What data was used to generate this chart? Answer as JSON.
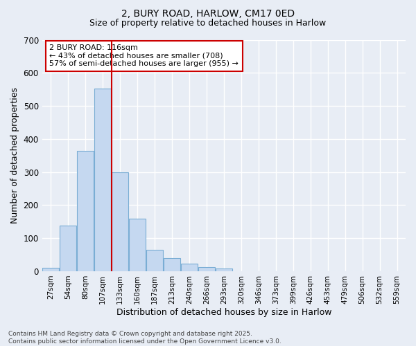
{
  "title1": "2, BURY ROAD, HARLOW, CM17 0ED",
  "title2": "Size of property relative to detached houses in Harlow",
  "xlabel": "Distribution of detached houses by size in Harlow",
  "ylabel": "Number of detached properties",
  "categories": [
    "27sqm",
    "54sqm",
    "80sqm",
    "107sqm",
    "133sqm",
    "160sqm",
    "187sqm",
    "213sqm",
    "240sqm",
    "266sqm",
    "293sqm",
    "320sqm",
    "346sqm",
    "373sqm",
    "399sqm",
    "426sqm",
    "453sqm",
    "479sqm",
    "506sqm",
    "532sqm",
    "559sqm"
  ],
  "values": [
    10,
    138,
    365,
    553,
    300,
    160,
    65,
    40,
    22,
    13,
    8,
    0,
    0,
    0,
    0,
    0,
    0,
    0,
    0,
    0,
    0
  ],
  "bar_color": "#c5d8f0",
  "bar_edge_color": "#7aadd4",
  "background_color": "#e8edf5",
  "grid_color": "#ffffff",
  "annotation_line1": "2 BURY ROAD: 116sqm",
  "annotation_line2": "← 43% of detached houses are smaller (708)",
  "annotation_line3": "57% of semi-detached houses are larger (955) →",
  "annotation_box_color": "#ffffff",
  "annotation_box_edge_color": "#cc0000",
  "red_line_x": 3.5,
  "ylim": [
    0,
    700
  ],
  "yticks": [
    0,
    100,
    200,
    300,
    400,
    500,
    600,
    700
  ],
  "footer": "Contains HM Land Registry data © Crown copyright and database right 2025.\nContains public sector information licensed under the Open Government Licence v3.0."
}
